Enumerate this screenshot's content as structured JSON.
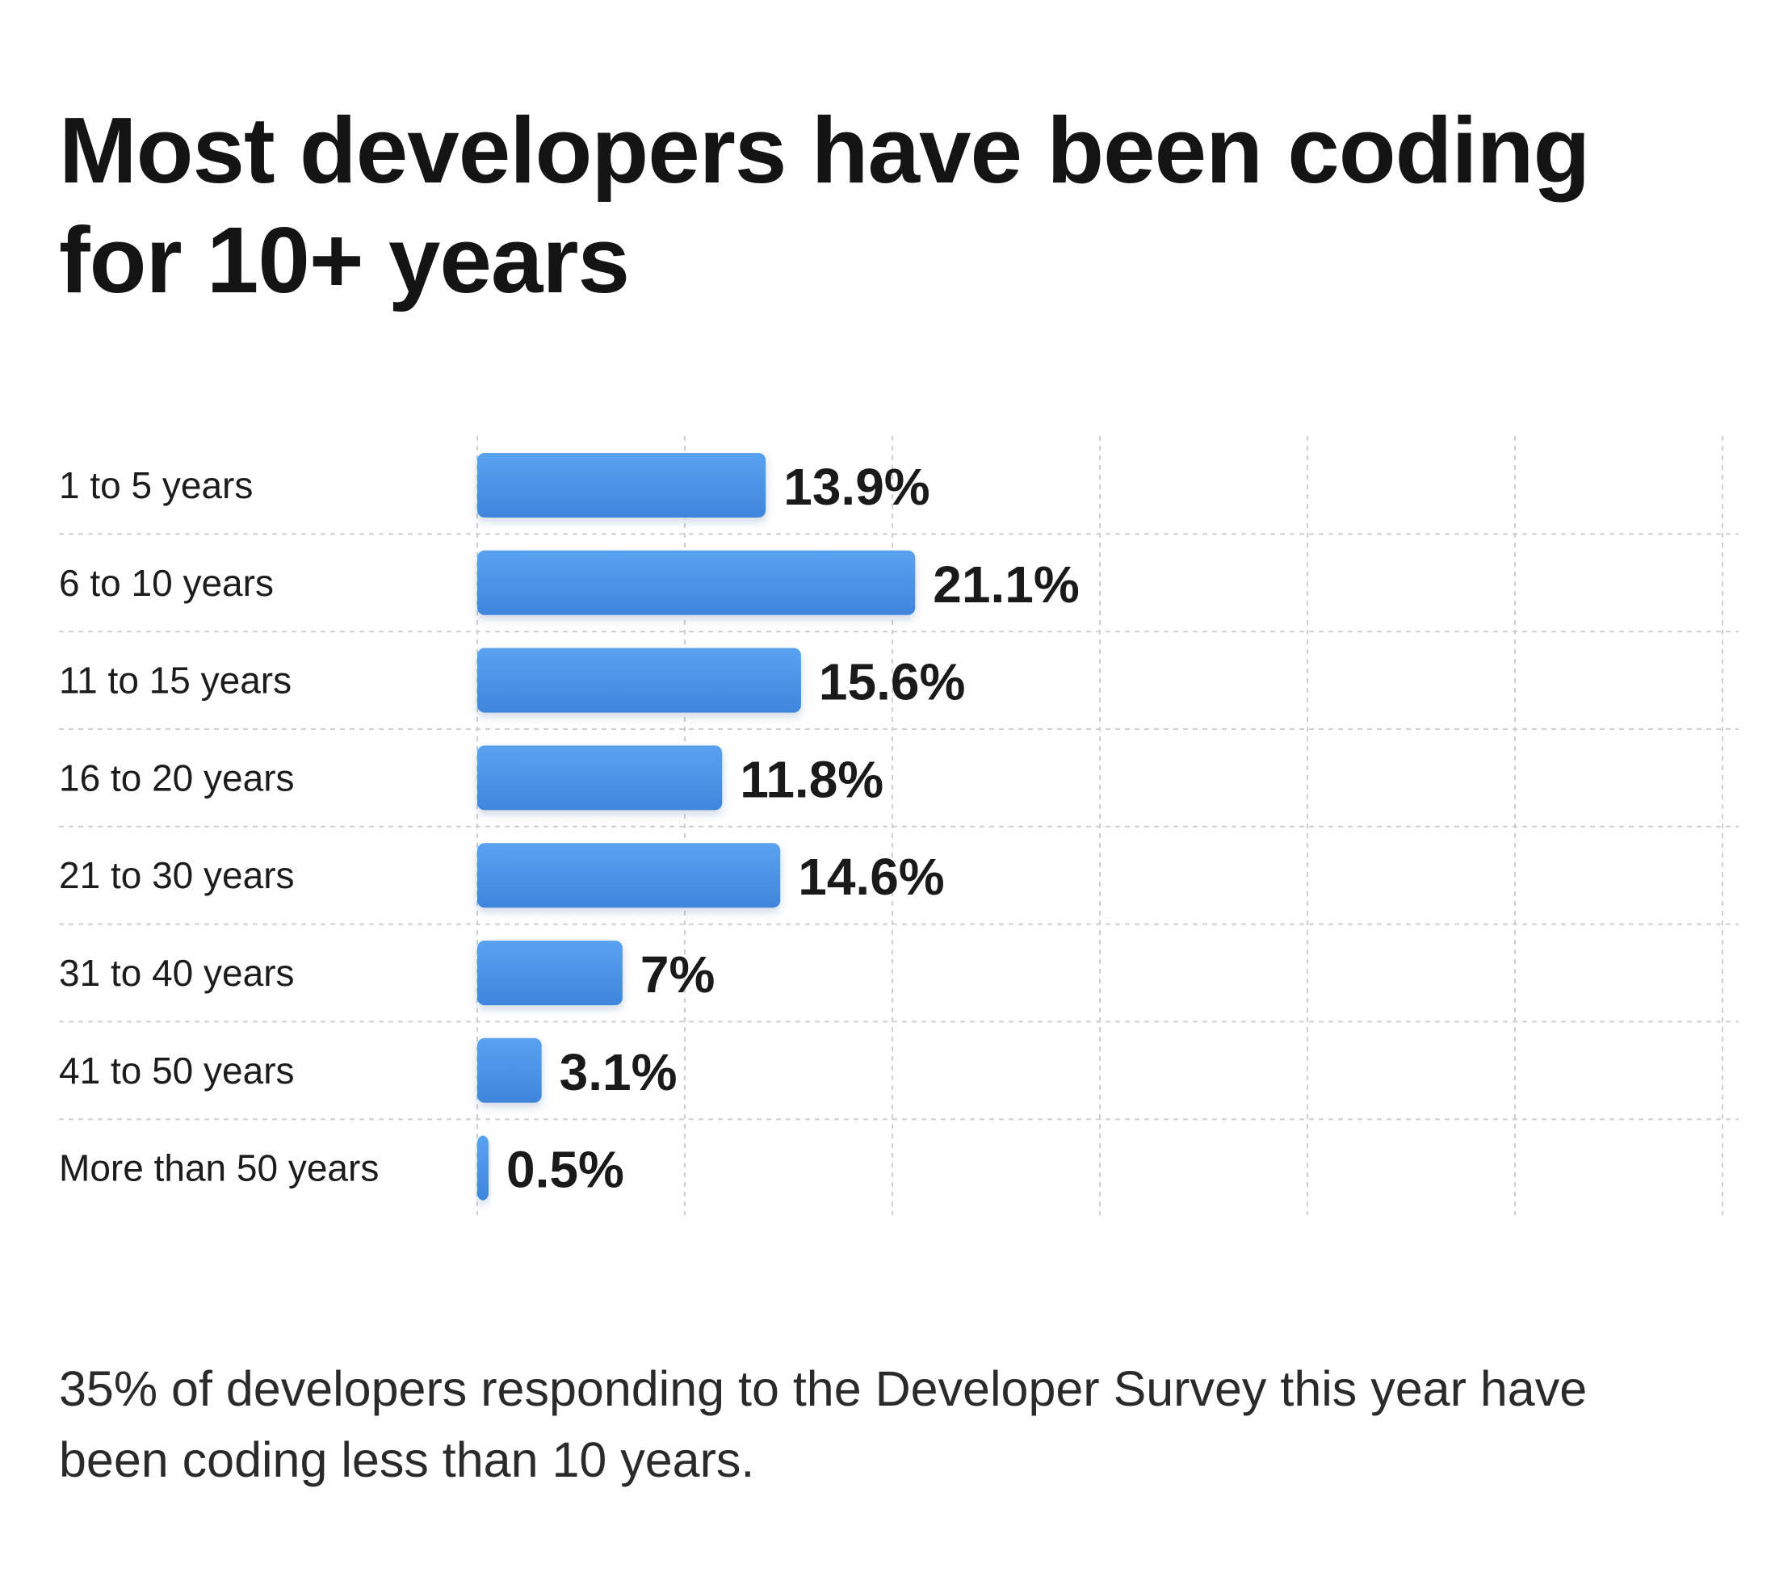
{
  "chart_data": {
    "type": "bar",
    "orientation": "horizontal",
    "title": "Most developers have been coding for 10+ years",
    "subtitle": "",
    "xlabel": "",
    "ylabel": "",
    "categories": [
      "1 to 5 years",
      "6 to 10 years",
      "11 to 15 years",
      "16 to 20 years",
      "21 to 30 years",
      "31 to 40 years",
      "41 to 50 years",
      "More than 50 years"
    ],
    "values": [
      13.9,
      21.1,
      15.6,
      11.8,
      14.6,
      7,
      3.1,
      0.5
    ],
    "value_labels": [
      "13.9%",
      "21.1%",
      "15.6%",
      "11.8%",
      "14.6%",
      "7%",
      "3.1%",
      "0.5%"
    ],
    "unit": "%",
    "xlim": [
      0,
      60
    ],
    "grid": true,
    "bar_color": "#4a90e2",
    "annotation": "35% of developers responding to the Developer Survey this year have been coding less than 10 years."
  }
}
